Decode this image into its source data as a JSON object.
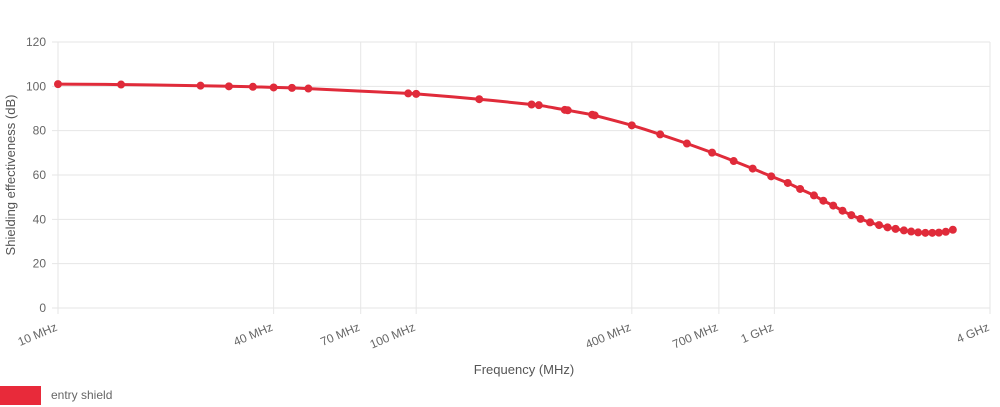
{
  "chart_data": {
    "type": "line",
    "x_scale": "log",
    "xlabel": "Frequency (MHz)",
    "ylabel": "Shielding effectiveness (dB)",
    "xlim": [
      10,
      4000
    ],
    "ylim": [
      0,
      120
    ],
    "y_ticks": [
      0,
      20,
      40,
      60,
      80,
      100,
      120
    ],
    "x_ticks": [
      {
        "value": 10,
        "label": "10 MHz"
      },
      {
        "value": 40,
        "label": "40 MHz"
      },
      {
        "value": 70,
        "label": "70 MHz"
      },
      {
        "value": 100,
        "label": "100 MHz"
      },
      {
        "value": 400,
        "label": "400 MHz"
      },
      {
        "value": 700,
        "label": "700 MHz"
      },
      {
        "value": 1000,
        "label": "1 GHz"
      },
      {
        "value": 4000,
        "label": "4 GHz"
      }
    ],
    "grid": true,
    "legend_position": "bottom-left",
    "color": "#e02b3a",
    "series": [
      {
        "name": "entry shield",
        "points": [
          [
            10,
            101
          ],
          [
            15,
            100.8
          ],
          [
            25,
            100.3
          ],
          [
            30,
            100
          ],
          [
            35,
            99.8
          ],
          [
            40,
            99.5
          ],
          [
            45,
            99.3
          ],
          [
            50,
            99
          ],
          [
            95,
            96.8
          ],
          [
            100,
            96.6
          ],
          [
            150,
            94.2
          ],
          [
            210,
            91.8
          ],
          [
            220,
            91.5
          ],
          [
            260,
            89.4
          ],
          [
            265,
            89.2
          ],
          [
            310,
            87.2
          ],
          [
            315,
            86.9
          ],
          [
            400,
            82.4
          ],
          [
            480,
            78.3
          ],
          [
            570,
            74.2
          ],
          [
            670,
            70.1
          ],
          [
            770,
            66.3
          ],
          [
            870,
            62.9
          ],
          [
            980,
            59.4
          ],
          [
            1090,
            56.4
          ],
          [
            1180,
            53.7
          ],
          [
            1290,
            50.8
          ],
          [
            1370,
            48.4
          ],
          [
            1460,
            46.2
          ],
          [
            1550,
            43.9
          ],
          [
            1640,
            41.9
          ],
          [
            1740,
            40.2
          ],
          [
            1850,
            38.6
          ],
          [
            1960,
            37.4
          ],
          [
            2070,
            36.4
          ],
          [
            2180,
            35.7
          ],
          [
            2300,
            35
          ],
          [
            2410,
            34.5
          ],
          [
            2520,
            34.1
          ],
          [
            2640,
            33.9
          ],
          [
            2760,
            33.9
          ],
          [
            2880,
            34
          ],
          [
            3010,
            34.4
          ],
          [
            3150,
            35.3
          ]
        ]
      }
    ]
  }
}
